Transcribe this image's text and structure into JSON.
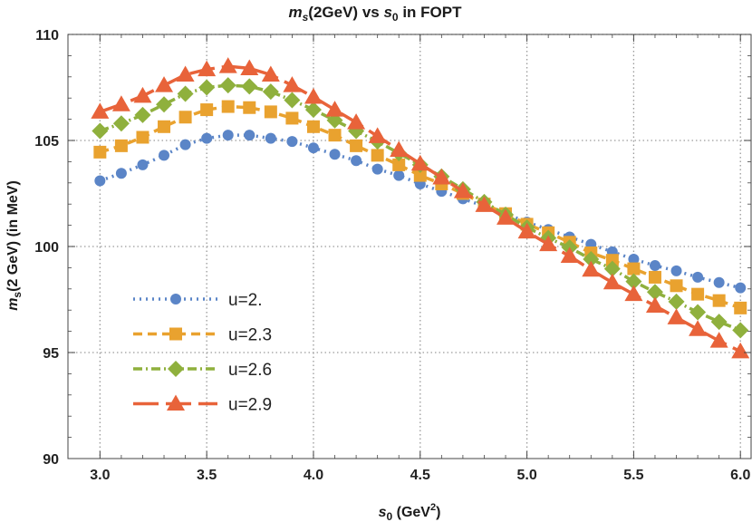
{
  "chart_data": {
    "type": "line",
    "title": {
      "var": "m",
      "var_sub": "s",
      "mid": "(2GeV) vs ",
      "var2": "s",
      "var2_sub": "0",
      "tail": " in FOPT"
    },
    "xlabel": {
      "var": "s",
      "var_sub": "0",
      "mid": " (GeV",
      "sup": "2",
      "tail": ")"
    },
    "ylabel": {
      "var": "m",
      "var_sub": "s",
      "tail": "(2 GeV) (in MeV)"
    },
    "xlim": [
      2.85,
      6.05
    ],
    "ylim": [
      90,
      110
    ],
    "x_ticks": [
      3.0,
      3.5,
      4.0,
      4.5,
      5.0,
      5.5,
      6.0
    ],
    "x_tick_labels": [
      "3.0",
      "3.5",
      "4.0",
      "4.5",
      "5.0",
      "5.5",
      "6.0"
    ],
    "y_ticks": [
      90,
      95,
      100,
      105,
      110
    ],
    "y_tick_labels": [
      "90",
      "95",
      "100",
      "105",
      "110"
    ],
    "grid": true,
    "legend_position": "bottom-left",
    "x": [
      3.0,
      3.1,
      3.2,
      3.3,
      3.4,
      3.5,
      3.6,
      3.7,
      3.8,
      3.9,
      4.0,
      4.1,
      4.2,
      4.3,
      4.4,
      4.5,
      4.6,
      4.7,
      4.8,
      4.9,
      5.0,
      5.1,
      5.2,
      5.3,
      5.4,
      5.5,
      5.6,
      5.7,
      5.8,
      5.9,
      6.0
    ],
    "series": [
      {
        "name": "u=2.",
        "color": "#5b85c7",
        "marker": "circle",
        "dash": "2 5",
        "values": [
          103.1,
          103.45,
          103.85,
          104.3,
          104.8,
          105.1,
          105.25,
          105.25,
          105.1,
          104.95,
          104.65,
          104.35,
          104.05,
          103.65,
          103.35,
          102.95,
          102.6,
          102.25,
          101.9,
          101.55,
          101.15,
          100.8,
          100.45,
          100.1,
          99.75,
          99.4,
          99.1,
          98.85,
          98.55,
          98.3,
          98.05
        ]
      },
      {
        "name": "u=2.3",
        "color": "#e9a22f",
        "marker": "square",
        "dash": "10 6",
        "values": [
          104.45,
          104.75,
          105.15,
          105.65,
          106.1,
          106.45,
          106.6,
          106.55,
          106.35,
          106.05,
          105.65,
          105.25,
          104.75,
          104.3,
          103.85,
          103.35,
          102.95,
          102.5,
          102.0,
          101.55,
          101.05,
          100.65,
          100.2,
          99.7,
          99.35,
          98.95,
          98.55,
          98.15,
          97.75,
          97.45,
          97.1
        ]
      },
      {
        "name": "u=2.6",
        "color": "#8fb03d",
        "marker": "diamond",
        "dash": "10 4 2 4",
        "values": [
          105.45,
          105.8,
          106.2,
          106.7,
          107.2,
          107.5,
          107.6,
          107.55,
          107.3,
          106.9,
          106.45,
          105.95,
          105.45,
          104.95,
          104.4,
          103.85,
          103.3,
          102.7,
          102.1,
          101.5,
          100.9,
          100.4,
          99.95,
          99.4,
          98.95,
          98.35,
          97.85,
          97.4,
          96.9,
          96.45,
          96.05
        ]
      },
      {
        "name": "u=2.9",
        "color": "#e8633a",
        "marker": "triangle",
        "dash": "28 8",
        "values": [
          106.35,
          106.7,
          107.1,
          107.6,
          108.1,
          108.35,
          108.5,
          108.4,
          108.1,
          107.6,
          107.05,
          106.45,
          105.85,
          105.2,
          104.55,
          103.9,
          103.25,
          102.6,
          101.95,
          101.35,
          100.7,
          100.1,
          99.55,
          98.9,
          98.3,
          97.75,
          97.2,
          96.65,
          96.1,
          95.55,
          95.05
        ]
      }
    ]
  }
}
